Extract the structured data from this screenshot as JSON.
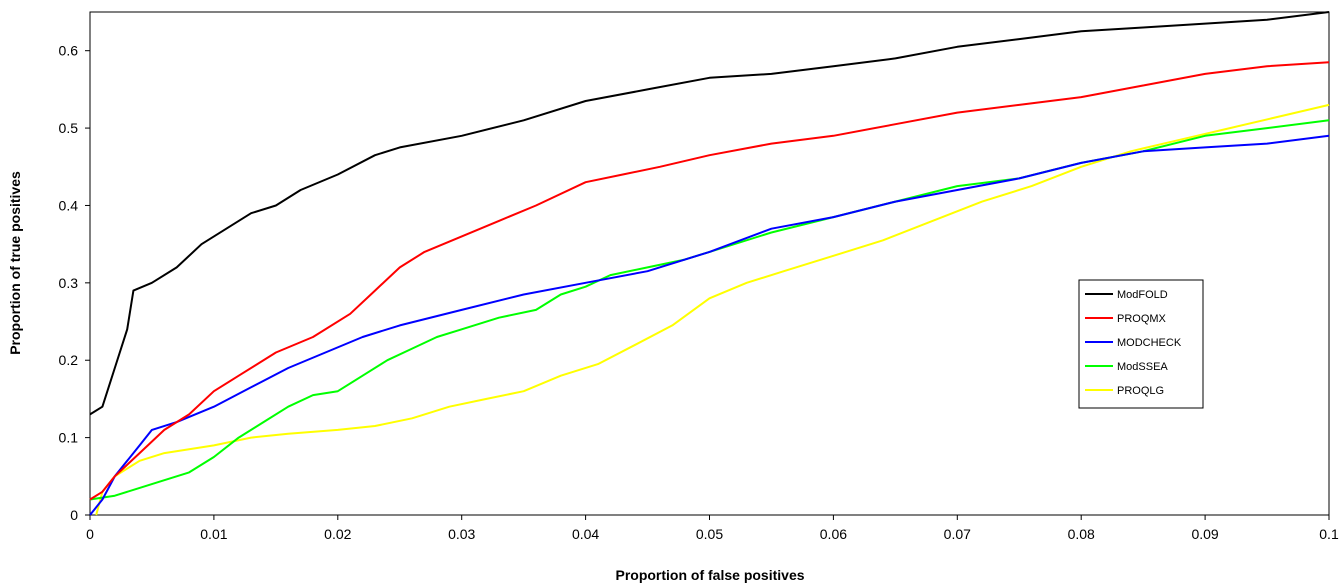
{
  "chart_data": {
    "type": "line",
    "title": "",
    "xlabel": "Proportion of false positives",
    "ylabel": "Proportion of true positives",
    "xlim": [
      0,
      0.1
    ],
    "ylim": [
      0,
      0.65
    ],
    "x_ticks": [
      0,
      0.01,
      0.02,
      0.03,
      0.04,
      0.05,
      0.06,
      0.07,
      0.08,
      0.09,
      0.1
    ],
    "x_tick_labels": [
      "0",
      "0.01",
      "0.02",
      "0.03",
      "0.04",
      "0.05",
      "0.06",
      "0.07",
      "0.08",
      "0.09",
      "0.1"
    ],
    "y_ticks": [
      0,
      0.1,
      0.2,
      0.3,
      0.4,
      0.5,
      0.6
    ],
    "y_tick_labels": [
      "0",
      "0.1",
      "0.2",
      "0.3",
      "0.4",
      "0.5",
      "0.6"
    ],
    "grid": false,
    "legend_position": "right",
    "series": [
      {
        "name": "ModFOLD",
        "color": "#000000",
        "points": [
          [
            0,
            0.13
          ],
          [
            0.001,
            0.14
          ],
          [
            0.002,
            0.19
          ],
          [
            0.003,
            0.24
          ],
          [
            0.0035,
            0.29
          ],
          [
            0.005,
            0.3
          ],
          [
            0.007,
            0.32
          ],
          [
            0.009,
            0.35
          ],
          [
            0.011,
            0.37
          ],
          [
            0.013,
            0.39
          ],
          [
            0.015,
            0.4
          ],
          [
            0.017,
            0.42
          ],
          [
            0.02,
            0.44
          ],
          [
            0.023,
            0.465
          ],
          [
            0.025,
            0.475
          ],
          [
            0.03,
            0.49
          ],
          [
            0.035,
            0.51
          ],
          [
            0.04,
            0.535
          ],
          [
            0.045,
            0.55
          ],
          [
            0.05,
            0.565
          ],
          [
            0.055,
            0.57
          ],
          [
            0.06,
            0.58
          ],
          [
            0.065,
            0.59
          ],
          [
            0.07,
            0.605
          ],
          [
            0.075,
            0.615
          ],
          [
            0.08,
            0.625
          ],
          [
            0.085,
            0.63
          ],
          [
            0.09,
            0.635
          ],
          [
            0.095,
            0.64
          ],
          [
            0.1,
            0.65
          ]
        ]
      },
      {
        "name": "PROQMX",
        "color": "#ff0000",
        "points": [
          [
            0,
            0.02
          ],
          [
            0.001,
            0.03
          ],
          [
            0.002,
            0.05
          ],
          [
            0.004,
            0.08
          ],
          [
            0.006,
            0.11
          ],
          [
            0.008,
            0.13
          ],
          [
            0.01,
            0.16
          ],
          [
            0.012,
            0.18
          ],
          [
            0.015,
            0.21
          ],
          [
            0.018,
            0.23
          ],
          [
            0.021,
            0.26
          ],
          [
            0.023,
            0.29
          ],
          [
            0.025,
            0.32
          ],
          [
            0.027,
            0.34
          ],
          [
            0.03,
            0.36
          ],
          [
            0.033,
            0.38
          ],
          [
            0.036,
            0.4
          ],
          [
            0.04,
            0.43
          ],
          [
            0.043,
            0.44
          ],
          [
            0.046,
            0.45
          ],
          [
            0.05,
            0.465
          ],
          [
            0.055,
            0.48
          ],
          [
            0.06,
            0.49
          ],
          [
            0.065,
            0.505
          ],
          [
            0.07,
            0.52
          ],
          [
            0.075,
            0.53
          ],
          [
            0.08,
            0.54
          ],
          [
            0.085,
            0.555
          ],
          [
            0.09,
            0.57
          ],
          [
            0.095,
            0.58
          ],
          [
            0.1,
            0.585
          ]
        ]
      },
      {
        "name": "MODCHECK",
        "color": "#0000ff",
        "points": [
          [
            0,
            0.0
          ],
          [
            0.0005,
            0.01
          ],
          [
            0.001,
            0.02
          ],
          [
            0.002,
            0.05
          ],
          [
            0.003,
            0.07
          ],
          [
            0.004,
            0.09
          ],
          [
            0.005,
            0.11
          ],
          [
            0.007,
            0.12
          ],
          [
            0.01,
            0.14
          ],
          [
            0.013,
            0.165
          ],
          [
            0.016,
            0.19
          ],
          [
            0.019,
            0.21
          ],
          [
            0.022,
            0.23
          ],
          [
            0.025,
            0.245
          ],
          [
            0.03,
            0.265
          ],
          [
            0.035,
            0.285
          ],
          [
            0.04,
            0.3
          ],
          [
            0.045,
            0.315
          ],
          [
            0.05,
            0.34
          ],
          [
            0.055,
            0.37
          ],
          [
            0.06,
            0.385
          ],
          [
            0.065,
            0.405
          ],
          [
            0.07,
            0.42
          ],
          [
            0.075,
            0.435
          ],
          [
            0.08,
            0.455
          ],
          [
            0.085,
            0.47
          ],
          [
            0.09,
            0.475
          ],
          [
            0.095,
            0.48
          ],
          [
            0.1,
            0.49
          ]
        ]
      },
      {
        "name": "ModSSEA",
        "color": "#00ff00",
        "points": [
          [
            0,
            0.02
          ],
          [
            0.002,
            0.025
          ],
          [
            0.004,
            0.035
          ],
          [
            0.006,
            0.045
          ],
          [
            0.008,
            0.055
          ],
          [
            0.01,
            0.075
          ],
          [
            0.012,
            0.1
          ],
          [
            0.014,
            0.12
          ],
          [
            0.016,
            0.14
          ],
          [
            0.018,
            0.155
          ],
          [
            0.02,
            0.16
          ],
          [
            0.022,
            0.18
          ],
          [
            0.024,
            0.2
          ],
          [
            0.026,
            0.215
          ],
          [
            0.028,
            0.23
          ],
          [
            0.03,
            0.24
          ],
          [
            0.033,
            0.255
          ],
          [
            0.036,
            0.265
          ],
          [
            0.038,
            0.285
          ],
          [
            0.04,
            0.295
          ],
          [
            0.042,
            0.31
          ],
          [
            0.045,
            0.32
          ],
          [
            0.048,
            0.33
          ],
          [
            0.05,
            0.34
          ],
          [
            0.055,
            0.365
          ],
          [
            0.06,
            0.385
          ],
          [
            0.065,
            0.405
          ],
          [
            0.07,
            0.425
          ],
          [
            0.075,
            0.435
          ],
          [
            0.08,
            0.455
          ],
          [
            0.085,
            0.47
          ],
          [
            0.09,
            0.49
          ],
          [
            0.095,
            0.5
          ],
          [
            0.1,
            0.51
          ]
        ]
      },
      {
        "name": "PROQLG",
        "color": "#ffff00",
        "points": [
          [
            0.0005,
            0.0
          ],
          [
            0.001,
            0.03
          ],
          [
            0.002,
            0.05
          ],
          [
            0.004,
            0.07
          ],
          [
            0.006,
            0.08
          ],
          [
            0.008,
            0.085
          ],
          [
            0.01,
            0.09
          ],
          [
            0.013,
            0.1
          ],
          [
            0.016,
            0.105
          ],
          [
            0.02,
            0.11
          ],
          [
            0.023,
            0.115
          ],
          [
            0.026,
            0.125
          ],
          [
            0.029,
            0.14
          ],
          [
            0.032,
            0.15
          ],
          [
            0.035,
            0.16
          ],
          [
            0.038,
            0.18
          ],
          [
            0.041,
            0.195
          ],
          [
            0.044,
            0.22
          ],
          [
            0.047,
            0.245
          ],
          [
            0.05,
            0.28
          ],
          [
            0.053,
            0.3
          ],
          [
            0.056,
            0.315
          ],
          [
            0.06,
            0.335
          ],
          [
            0.064,
            0.355
          ],
          [
            0.068,
            0.38
          ],
          [
            0.072,
            0.405
          ],
          [
            0.076,
            0.425
          ],
          [
            0.08,
            0.45
          ],
          [
            0.084,
            0.47
          ],
          [
            0.088,
            0.485
          ],
          [
            0.092,
            0.5
          ],
          [
            0.096,
            0.515
          ],
          [
            0.1,
            0.53
          ]
        ]
      }
    ]
  }
}
